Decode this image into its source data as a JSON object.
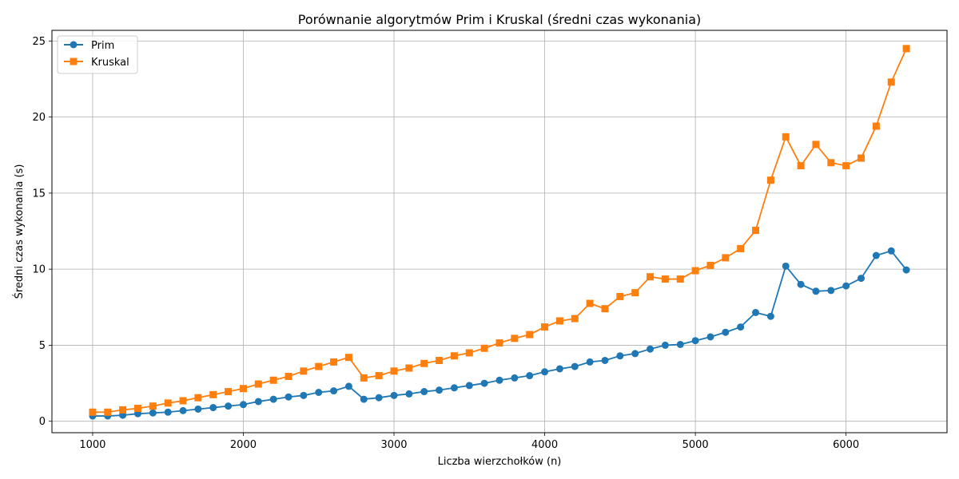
{
  "chart_data": {
    "type": "line",
    "title": "Porównanie algorytmów Prim i Kruskal (średni czas wykonania)",
    "xlabel": "Liczba wierzchołków (n)",
    "ylabel": "Średni czas wykonania (s)",
    "xlim": [
      730,
      6670
    ],
    "ylim": [
      -0.75,
      25.7
    ],
    "x_ticks": [
      1000,
      2000,
      3000,
      4000,
      5000,
      6000
    ],
    "y_ticks": [
      0,
      5,
      10,
      15,
      20,
      25
    ],
    "grid": true,
    "legend_position": "top-left",
    "x": [
      1000,
      1100,
      1200,
      1300,
      1400,
      1500,
      1600,
      1700,
      1800,
      1900,
      2000,
      2100,
      2200,
      2300,
      2400,
      2500,
      2600,
      2700,
      2800,
      2900,
      3000,
      3100,
      3200,
      3300,
      3400,
      3500,
      3600,
      3700,
      3800,
      3900,
      4000,
      4100,
      4200,
      4300,
      4400,
      4500,
      4600,
      4700,
      4800,
      4900,
      5000,
      5100,
      5200,
      5300,
      5400,
      5500,
      5600,
      5700,
      5800,
      5900,
      6000,
      6100,
      6200,
      6300,
      6400
    ],
    "series": [
      {
        "name": "Prim",
        "color": "#1f77b4",
        "marker": "circle",
        "values": [
          0.35,
          0.35,
          0.4,
          0.5,
          0.55,
          0.6,
          0.7,
          0.8,
          0.9,
          1.0,
          1.1,
          1.3,
          1.45,
          1.6,
          1.7,
          1.9,
          2.0,
          2.3,
          1.45,
          1.55,
          1.7,
          1.8,
          1.95,
          2.05,
          2.2,
          2.35,
          2.5,
          2.7,
          2.85,
          3.0,
          3.25,
          3.45,
          3.6,
          3.9,
          4.0,
          4.3,
          4.45,
          4.75,
          5.0,
          5.05,
          5.3,
          5.55,
          5.85,
          6.2,
          7.15,
          6.9,
          10.2,
          9.0,
          8.55,
          8.6,
          8.9,
          9.4,
          10.9,
          11.2,
          9.95
        ]
      },
      {
        "name": "Kruskal",
        "color": "#ff7f0e",
        "marker": "square",
        "values": [
          0.6,
          0.6,
          0.75,
          0.85,
          1.0,
          1.2,
          1.35,
          1.55,
          1.75,
          1.95,
          2.15,
          2.45,
          2.7,
          2.95,
          3.3,
          3.6,
          3.9,
          4.2,
          2.85,
          3.0,
          3.3,
          3.5,
          3.8,
          4.0,
          4.3,
          4.5,
          4.8,
          5.15,
          5.45,
          5.7,
          6.2,
          6.6,
          6.75,
          7.75,
          7.4,
          8.2,
          8.45,
          9.5,
          9.35,
          9.35,
          9.9,
          10.25,
          10.75,
          11.35,
          12.55,
          15.85,
          18.7,
          16.8,
          18.2,
          17.0,
          16.8,
          17.3,
          19.4,
          22.3,
          24.5
        ]
      }
    ]
  }
}
